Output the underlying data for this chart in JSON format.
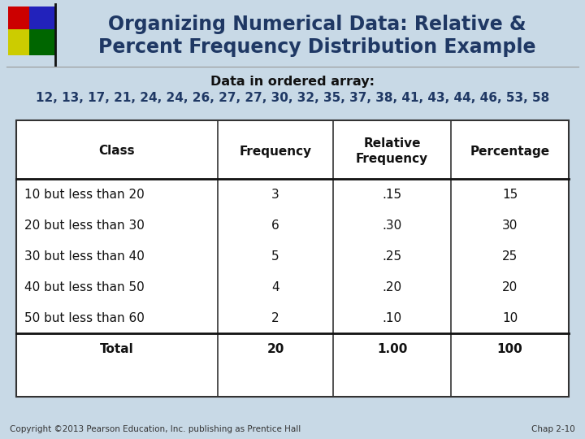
{
  "title_line1": "Organizing Numerical Data: Relative &",
  "title_line2": "Percent Frequency Distribution Example",
  "title_color": "#1F3864",
  "bg_color": "#C8D9E6",
  "subtitle": "Data in ordered array:",
  "data_array": "12, 13, 17, 21, 24, 24, 26, 27, 27, 30, 32, 35, 37, 38, 41, 43, 44, 46, 53, 58",
  "data_array_color": "#1F3864",
  "col_headers": [
    "Class",
    "Frequency",
    "Relative\nFrequency",
    "Percentage"
  ],
  "rows": [
    [
      "10 but less than 20",
      "3",
      ".15",
      "15"
    ],
    [
      "20 but less than 30",
      "6",
      ".30",
      "30"
    ],
    [
      "30 but less than 40",
      "5",
      ".25",
      "25"
    ],
    [
      "40 but less than 50",
      "4",
      ".20",
      "20"
    ],
    [
      "50 but less than 60",
      "2",
      ".10",
      "10"
    ],
    [
      "Total",
      "20",
      "1.00",
      "100"
    ]
  ],
  "table_border": "#333333",
  "copyright": "Copyright ©2013 Pearson Education, Inc. publishing as Prentice Hall",
  "chap": "Chap 2-10",
  "dec_red": "#CC0000",
  "dec_blue": "#2222BB",
  "dec_green": "#006600",
  "dec_yellow": "#CCCC00",
  "header_line_color": "#111111"
}
